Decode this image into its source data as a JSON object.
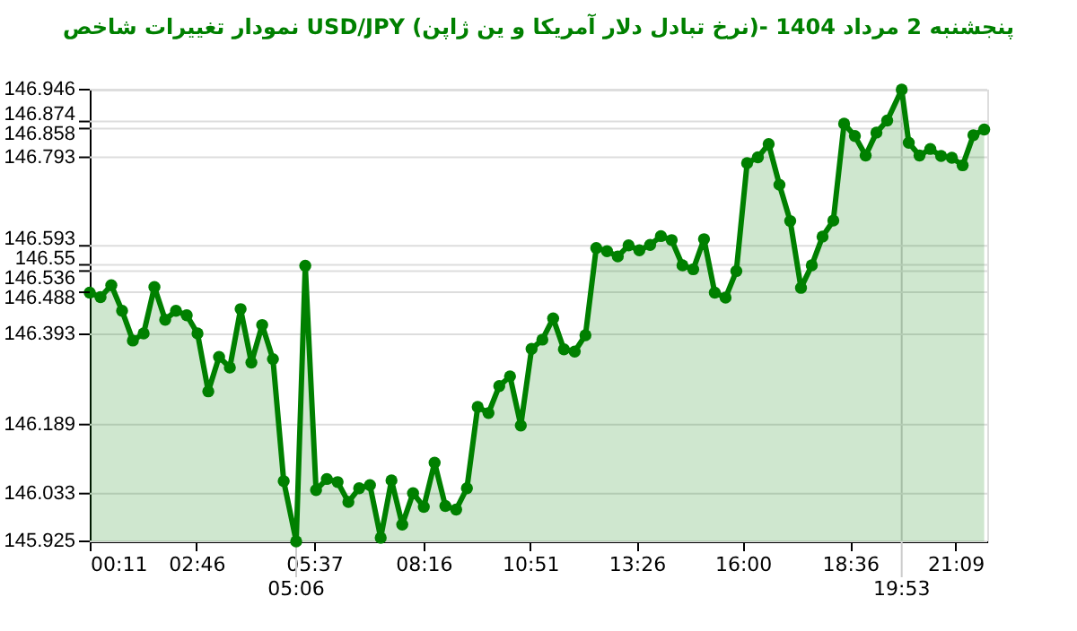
{
  "chart_data": {
    "type": "area",
    "title": "نمودار تغییرات شاخص USD/JPY (نرخ تبادل دلار آمریکا و ین ژاپن)- پنجشنبه  2 مرداد 1404",
    "x": [
      0.183,
      0.444,
      0.705,
      0.966,
      1.227,
      1.488,
      1.749,
      2.01,
      2.271,
      2.532,
      2.793,
      3.054,
      3.315,
      3.576,
      3.837,
      4.098,
      4.359,
      4.62,
      4.881,
      5.183,
      5.403,
      5.664,
      5.925,
      6.186,
      6.447,
      6.708,
      6.969,
      7.23,
      7.491,
      7.752,
      8.013,
      8.274,
      8.535,
      8.796,
      9.057,
      9.318,
      9.579,
      9.84,
      10.101,
      10.362,
      10.623,
      10.884,
      11.145,
      11.406,
      11.667,
      11.928,
      12.189,
      12.45,
      12.711,
      12.972,
      13.233,
      13.494,
      13.755,
      14.016,
      14.277,
      14.538,
      14.799,
      15.06,
      15.321,
      15.582,
      15.843,
      16.104,
      16.365,
      16.626,
      16.887,
      17.148,
      17.409,
      17.67,
      17.931,
      18.192,
      18.453,
      18.714,
      18.975,
      19.236,
      19.497,
      19.848,
      20.019,
      20.28,
      20.541,
      20.802,
      21.063,
      21.324,
      21.585,
      21.846
    ],
    "series": [
      {
        "color": "#008000",
        "values": [
          146.487,
          146.477,
          146.504,
          146.446,
          146.379,
          146.395,
          146.5,
          146.426,
          146.446,
          146.436,
          146.395,
          146.264,
          146.342,
          146.318,
          146.45,
          146.329,
          146.414,
          146.337,
          146.061,
          145.925,
          146.548,
          146.041,
          146.066,
          146.059,
          146.014,
          146.045,
          146.052,
          145.933,
          146.063,
          145.963,
          146.034,
          146.003,
          146.103,
          146.005,
          145.997,
          146.045,
          146.229,
          146.215,
          146.276,
          146.298,
          146.187,
          146.36,
          146.381,
          146.429,
          146.359,
          146.354,
          146.391,
          146.588,
          146.581,
          146.569,
          146.594,
          146.583,
          146.595,
          146.615,
          146.606,
          146.549,
          146.54,
          146.608,
          146.487,
          146.476,
          146.536,
          146.78,
          146.793,
          146.823,
          146.731,
          146.649,
          146.498,
          146.549,
          146.614,
          146.65,
          146.869,
          146.841,
          146.797,
          146.849,
          146.876,
          146.946,
          146.826,
          146.797,
          146.812,
          146.796,
          146.792,
          146.775,
          146.843,
          146.856
        ]
      }
    ],
    "xlim": [
      0.183,
      21.92
    ],
    "xticks": [
      {
        "value": 0.183,
        "label": "00:11"
      },
      {
        "value": 2.767,
        "label": "02:46"
      },
      {
        "value": 5.617,
        "label": "05:37"
      },
      {
        "value": 8.267,
        "label": "08:16"
      },
      {
        "value": 10.85,
        "label": "10:51"
      },
      {
        "value": 13.433,
        "label": "13:26"
      },
      {
        "value": 16,
        "label": "16:00"
      },
      {
        "value": 18.6,
        "label": "18:36"
      },
      {
        "value": 21.15,
        "label": "21:09"
      }
    ],
    "annotations": [
      {
        "text": "05:06",
        "x": 5.183,
        "y": 145.925
      },
      {
        "text": "19:53",
        "x": 19.848,
        "y": 146.946
      }
    ],
    "ylim": [
      145.925,
      146.946
    ],
    "yticks": [
      145.925,
      146.033,
      146.189,
      146.393,
      146.488,
      146.536,
      146.55,
      146.593,
      146.793,
      146.858,
      146.874,
      146.946
    ],
    "grid": "y",
    "marker": "circle",
    "line_style": "solid"
  }
}
